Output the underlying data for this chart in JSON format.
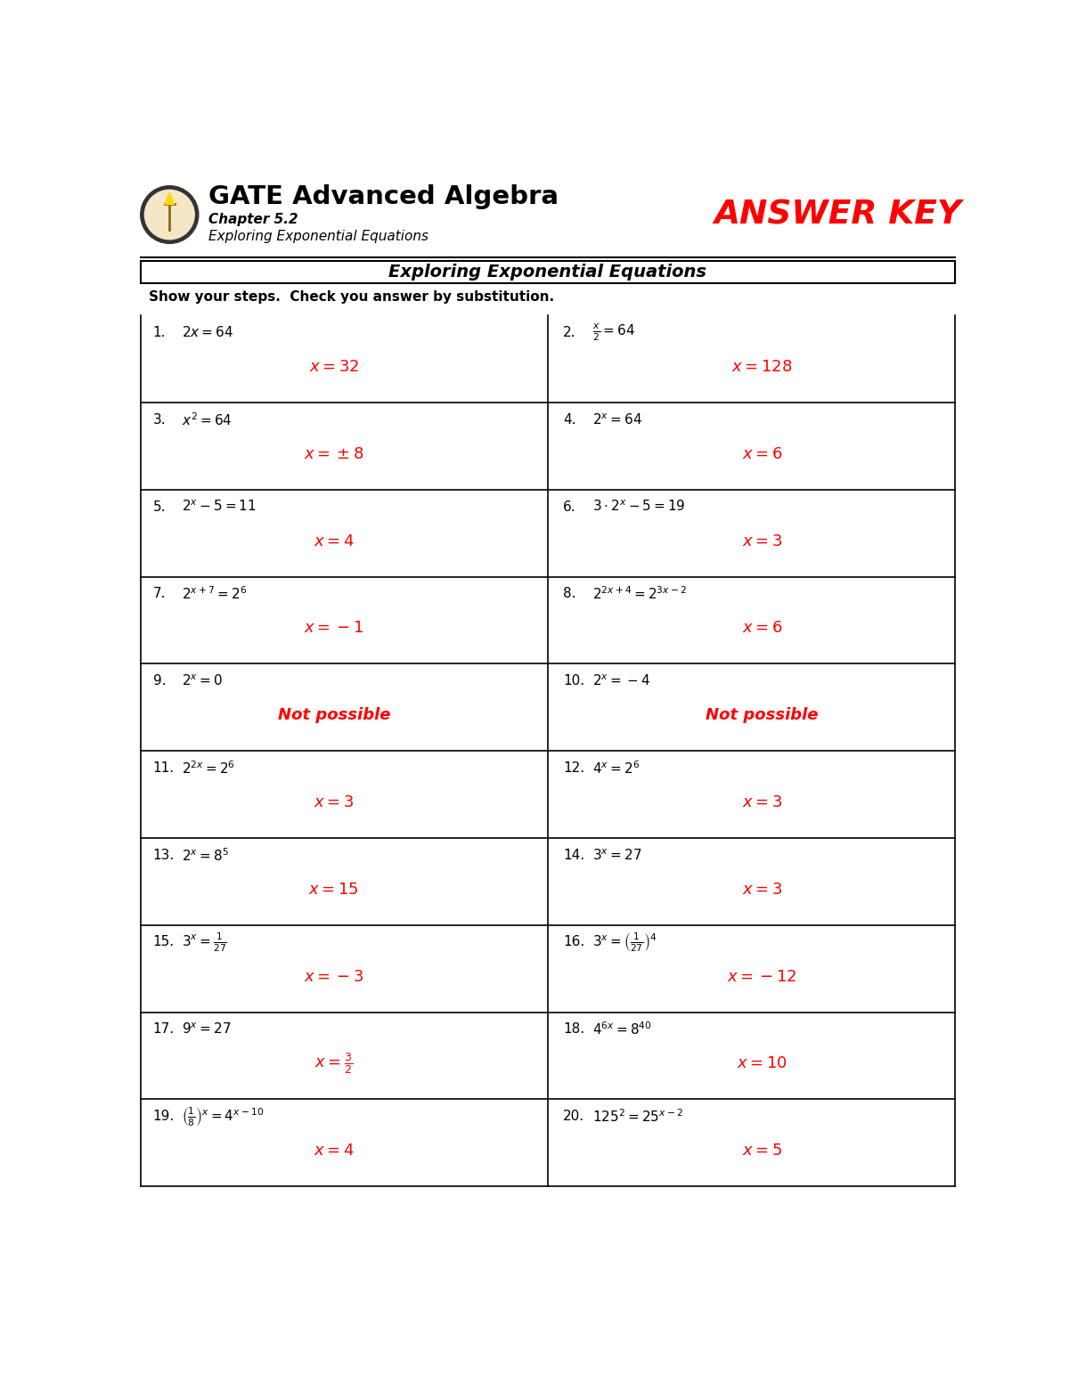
{
  "title_main": "GATE Advanced Algebra",
  "title_sub1": "Chapter 5.2",
  "title_sub2": "Exploring Exponential Equations",
  "answer_key_text": "ANSWER KEY",
  "worksheet_title": "Exploring Exponential Equations",
  "instruction": "Show your steps.  Check you answer by substitution.",
  "problems": [
    {
      "num": "1.",
      "question": "$2x = 64$",
      "answer": "$x = 32$",
      "col": 0
    },
    {
      "num": "2.",
      "question": "$\\frac{x}{2} = 64$",
      "answer": "$x = 128$",
      "col": 1
    },
    {
      "num": "3.",
      "question": "$x^2 = 64$",
      "answer": "$x = \\pm8$",
      "col": 0
    },
    {
      "num": "4.",
      "question": "$2^x = 64$",
      "answer": "$x = 6$",
      "col": 1
    },
    {
      "num": "5.",
      "question": "$2^x - 5 = 11$",
      "answer": "$x = 4$",
      "col": 0
    },
    {
      "num": "6.",
      "question": "$3 \\cdot 2^x - 5 = 19$",
      "answer": "$x = 3$",
      "col": 1
    },
    {
      "num": "7.",
      "question": "$2^{x+7} = 2^6$",
      "answer": "$x = -1$",
      "col": 0
    },
    {
      "num": "8.",
      "question": "$2^{2x+4} = 2^{3x-2}$",
      "answer": "$x = 6$",
      "col": 1
    },
    {
      "num": "9.",
      "question": "$2^x = 0$",
      "answer": "Not possible",
      "col": 0
    },
    {
      "num": "10.",
      "question": "$2^x = -4$",
      "answer": "Not possible",
      "col": 1
    },
    {
      "num": "11.",
      "question": "$2^{2x} = 2^6$",
      "answer": "$x = 3$",
      "col": 0
    },
    {
      "num": "12.",
      "question": "$4^x = 2^6$",
      "answer": "$x = 3$",
      "col": 1
    },
    {
      "num": "13.",
      "question": "$2^x = 8^5$",
      "answer": "$x = 15$",
      "col": 0
    },
    {
      "num": "14.",
      "question": "$3^x = 27$",
      "answer": "$x = 3$",
      "col": 1
    },
    {
      "num": "15.",
      "question": "$3^x = \\frac{1}{27}$",
      "answer": "$x = -3$",
      "col": 0
    },
    {
      "num": "16.",
      "question": "$3^x = \\left(\\frac{1}{27}\\right)^4$",
      "answer": "$x = -12$",
      "col": 1
    },
    {
      "num": "17.",
      "question": "$9^x = 27$",
      "answer": "$x = \\frac{3}{2}$",
      "col": 0
    },
    {
      "num": "18.",
      "question": "$4^{6x} = 8^{40}$",
      "answer": "$x = 10$",
      "col": 1
    },
    {
      "num": "19.",
      "question": "$\\left(\\frac{1}{8}\\right)^x = 4^{x-10}$",
      "answer": "$x = 4$",
      "col": 0
    },
    {
      "num": "20.",
      "question": "$125^2 = 25^{x-2}$",
      "answer": "$x = 5$",
      "col": 1
    }
  ],
  "bg_color": "#ffffff",
  "text_color": "#000000",
  "answer_color": "#ff0000",
  "answer_key_color": "#ff0000",
  "border_color": "#000000"
}
